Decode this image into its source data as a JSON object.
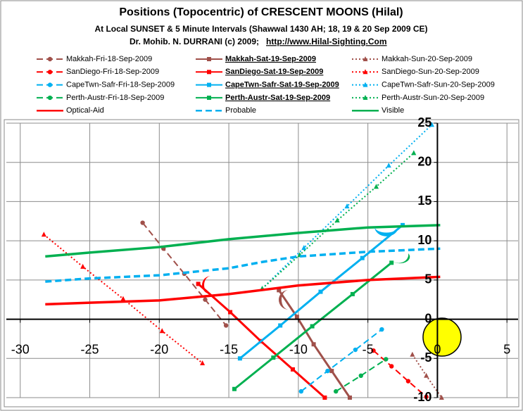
{
  "chart_data": {
    "type": "line",
    "title": "Positions (Topocentric) of CRESCENT MOONS (Hilal)",
    "subtitle": "At Local SUNSET & 5 Minute Intervals  (Shawwal 1430 AH; 18, 19 & 20 Sep 2009 CE)",
    "author": "Dr. Mohib. N. DURRANI (c) 2009;",
    "url": "http://www.Hilal-Sighting.Com",
    "xlim": [
      -31,
      5.8
    ],
    "ylim": [
      -10,
      25
    ],
    "xticks": [
      -30,
      -25,
      -20,
      -15,
      -10,
      -5,
      0,
      5
    ],
    "yticks": [
      -10,
      -5,
      0,
      5,
      10,
      15,
      20,
      25
    ],
    "grid": true,
    "series": [
      {
        "name": "Makkah-Fri-18-Sep-2009",
        "color": "#a0504a",
        "dash": "dash",
        "marker": "circle",
        "x": [
          -21.2,
          -19.7,
          -18.2,
          -16.7,
          -15.2
        ],
        "values": [
          12.3,
          9.0,
          5.8,
          2.5,
          -0.8
        ]
      },
      {
        "name": "Makkah-Sat-19-Sep-2009",
        "color": "#a0504a",
        "dash": "solid",
        "marker": "square",
        "underline": true,
        "x": [
          -11.4,
          -10.1,
          -8.9,
          -7.6,
          -6.3
        ],
        "values": [
          3.7,
          0.3,
          -3.2,
          -6.6,
          -10
        ]
      },
      {
        "name": "Makkah-Sun-20-Sep-2009",
        "color": "#a0504a",
        "dash": "dot",
        "marker": "triangle",
        "x": [
          -1.8,
          -0.8,
          0.3
        ],
        "values": [
          -4.5,
          -7.2,
          -10
        ]
      },
      {
        "name": "SanDiego-Fri-18-Sep-2009",
        "color": "#ff0000",
        "dash": "dash",
        "marker": "circle",
        "x": [
          -4.6,
          -3.3,
          -2.1,
          -0.8
        ],
        "values": [
          -4,
          -6,
          -7.9,
          -9.9
        ]
      },
      {
        "name": "SanDiego-Sat-19-Sep-2009",
        "color": "#ff0000",
        "dash": "solid",
        "marker": "square",
        "underline": true,
        "x": [
          -17.2,
          -14.9,
          -12.7,
          -10.4,
          -8.1
        ],
        "values": [
          4.5,
          0.9,
          -2.8,
          -6.4,
          -10
        ]
      },
      {
        "name": "SanDiego-Sun-20-Sep-2009",
        "color": "#ff0000",
        "dash": "dot",
        "marker": "triangle",
        "x": [
          -28.3,
          -25.5,
          -22.6,
          -19.8,
          -16.9
        ],
        "values": [
          10.8,
          6.7,
          2.6,
          -1.5,
          -5.6
        ]
      },
      {
        "name": "CapeTwn-Safr-Fri-18-Sep-2009",
        "color": "#00b0f0",
        "dash": "dash",
        "marker": "circle",
        "x": [
          -9.8,
          -7.9,
          -5.9,
          -4
        ],
        "values": [
          -9.2,
          -6.6,
          -3.9,
          -1.3
        ]
      },
      {
        "name": "CapeTwn-Safr-Sat-19-Sep-2009",
        "color": "#00b0f0",
        "dash": "solid",
        "marker": "square",
        "underline": true,
        "x": [
          -14.2,
          -11.3,
          -8.4,
          -5.4,
          -2.5
        ],
        "values": [
          -5,
          -0.8,
          3.5,
          7.8,
          12
        ]
      },
      {
        "name": "CapeTwn-Safr-Sun-20-Sep-2009",
        "color": "#00b0f0",
        "dash": "dot",
        "marker": "triangle",
        "x": [
          -12.6,
          -9.6,
          -6.5,
          -3.5,
          -0.4
        ],
        "values": [
          3.9,
          9.1,
          14.4,
          19.6,
          24.8
        ]
      },
      {
        "name": "Perth-Austr-Fri-18-Sep-2009",
        "color": "#00b050",
        "dash": "dash",
        "marker": "circle",
        "x": [
          -7.3,
          -5.5,
          -3.7
        ],
        "values": [
          -9.2,
          -7.2,
          -5.1
        ]
      },
      {
        "name": "Perth-Austr-Sat-19-Sep-2009",
        "color": "#00b050",
        "dash": "solid",
        "marker": "square",
        "underline": true,
        "x": [
          -14.6,
          -11.8,
          -9,
          -6.1,
          -3.3
        ],
        "values": [
          -8.9,
          -4.9,
          -0.9,
          3.2,
          7.2
        ]
      },
      {
        "name": "Perth-Austr-Sun-20-Sep-2009",
        "color": "#00b050",
        "dash": "dot",
        "marker": "triangle",
        "x": [
          -12.6,
          -9.9,
          -7.2,
          -4.4,
          -1.7
        ],
        "values": [
          3.9,
          8.2,
          12.6,
          16.9,
          21.2
        ]
      },
      {
        "name": "Optical-Aid",
        "color": "#ff0000",
        "dash": "solid",
        "marker": "none",
        "x": [
          -28.2,
          -25,
          -20,
          -15,
          -10,
          -5,
          0.2
        ],
        "values": [
          1.9,
          2.1,
          2.4,
          3.2,
          4.3,
          5.0,
          5.4
        ]
      },
      {
        "name": "Probable",
        "color": "#00b0f0",
        "dash": "dash",
        "marker": "none",
        "x": [
          -28.2,
          -25,
          -20,
          -15,
          -12.6,
          -10,
          -5,
          0.2
        ],
        "values": [
          4.8,
          5.2,
          5.6,
          6.5,
          7.3,
          8.0,
          8.6,
          9.0
        ]
      },
      {
        "name": "Visible",
        "color": "#00b050",
        "dash": "solid",
        "marker": "none",
        "x": [
          -28.2,
          -25,
          -20,
          -15,
          -10,
          -5,
          0.2
        ],
        "values": [
          8.0,
          8.5,
          9.2,
          10.2,
          11.0,
          11.7,
          12.0
        ]
      }
    ]
  }
}
